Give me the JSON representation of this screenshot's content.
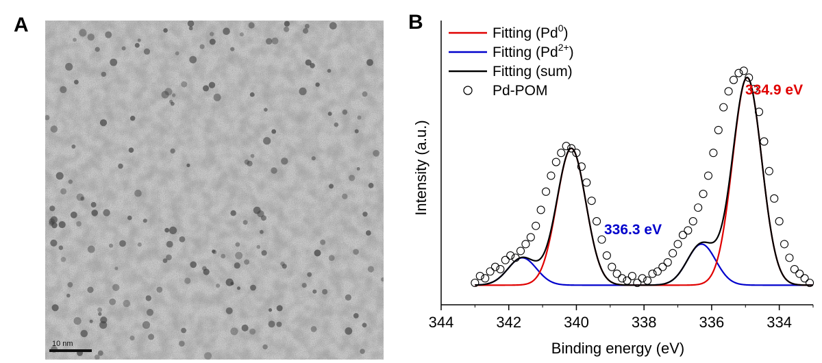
{
  "panels": {
    "a_label": "A",
    "b_label": "B"
  },
  "tem": {
    "scale_bar_label": "10 nm"
  },
  "colors": {
    "pd0": "#e00000",
    "pd2": "#0000cc",
    "sum": "#000000",
    "peak_pd0_label": "#e00000",
    "peak_pd2_label": "#0000cc"
  },
  "chart_data": {
    "type": "line",
    "xlabel": "Binding energy (eV)",
    "ylabel": "Intensity (a.u.)",
    "x_reversed": true,
    "xlim": [
      344,
      333
    ],
    "ylim": [
      0,
      1
    ],
    "x_ticks": [
      344,
      342,
      340,
      338,
      336,
      334
    ],
    "legend": {
      "position": "top-left",
      "entries": [
        {
          "base": "Fitting (Pd",
          "sup": "0",
          "tail": ")",
          "style": "line",
          "color": "#e00000"
        },
        {
          "base": "Fitting (Pd",
          "sup": "2+",
          "tail": ")",
          "style": "line",
          "color": "#0000cc"
        },
        {
          "base": "Fitting (sum)",
          "sup": "",
          "tail": "",
          "style": "line",
          "color": "#000000"
        },
        {
          "base": "Pd-POM",
          "sup": "",
          "tail": "",
          "style": "circle",
          "color": "#000000"
        }
      ]
    },
    "annotations": [
      {
        "text": "334.9 eV",
        "color": "#e00000"
      },
      {
        "text": "336.3 eV",
        "color": "#0000cc"
      }
    ],
    "series": [
      {
        "name": "Fitting (Pd0)",
        "color": "#e00000",
        "baseline": 0.02,
        "peaks": [
          {
            "center": 334.95,
            "height": 0.91,
            "sigma": 0.43
          },
          {
            "center": 340.15,
            "height": 0.6,
            "sigma": 0.43
          }
        ]
      },
      {
        "name": "Fitting (Pd2+)",
        "color": "#0000cc",
        "baseline": 0.02,
        "peaks": [
          {
            "center": 336.3,
            "height": 0.18,
            "sigma": 0.42
          },
          {
            "center": 341.6,
            "height": 0.12,
            "sigma": 0.42
          }
        ]
      },
      {
        "name": "Fitting (sum)",
        "color": "#000000",
        "type": "sum"
      },
      {
        "name": "Pd-POM",
        "type": "scatter",
        "color": "#000000",
        "x": [
          343.0,
          342.85,
          342.7,
          342.55,
          342.4,
          342.25,
          342.1,
          341.95,
          341.8,
          341.65,
          341.5,
          341.35,
          341.2,
          341.05,
          340.9,
          340.75,
          340.6,
          340.45,
          340.3,
          340.15,
          340.0,
          339.85,
          339.7,
          339.55,
          339.4,
          339.25,
          339.1,
          338.95,
          338.8,
          338.65,
          338.5,
          338.35,
          338.2,
          338.05,
          337.9,
          337.75,
          337.6,
          337.45,
          337.3,
          337.15,
          337.0,
          336.85,
          336.7,
          336.55,
          336.4,
          336.25,
          336.1,
          335.95,
          335.8,
          335.65,
          335.5,
          335.35,
          335.2,
          335.05,
          334.9,
          334.75,
          334.6,
          334.45,
          334.3,
          334.15,
          334.0,
          333.85,
          333.7,
          333.55,
          333.4,
          333.25,
          333.1
        ],
        "y": [
          0.03,
          0.06,
          0.05,
          0.08,
          0.1,
          0.09,
          0.13,
          0.15,
          0.14,
          0.17,
          0.2,
          0.23,
          0.28,
          0.35,
          0.43,
          0.5,
          0.56,
          0.6,
          0.63,
          0.62,
          0.6,
          0.54,
          0.47,
          0.39,
          0.3,
          0.22,
          0.15,
          0.1,
          0.07,
          0.05,
          0.04,
          0.06,
          0.03,
          0.05,
          0.04,
          0.07,
          0.08,
          0.1,
          0.12,
          0.16,
          0.2,
          0.24,
          0.26,
          0.3,
          0.36,
          0.42,
          0.5,
          0.6,
          0.7,
          0.8,
          0.87,
          0.92,
          0.95,
          0.96,
          0.93,
          0.88,
          0.78,
          0.65,
          0.52,
          0.4,
          0.3,
          0.2,
          0.14,
          0.09,
          0.07,
          0.05,
          0.03
        ]
      }
    ]
  }
}
